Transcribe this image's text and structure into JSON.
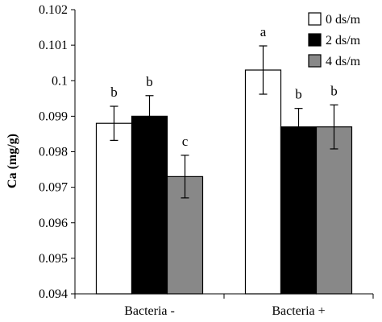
{
  "chart_data": {
    "type": "bar",
    "title": "",
    "xlabel": "",
    "ylabel": "Ca (mg/g)",
    "ylim": [
      0.094,
      0.102
    ],
    "yticks": [
      0.094,
      0.095,
      0.096,
      0.097,
      0.098,
      0.099,
      0.1,
      0.101,
      0.102
    ],
    "ytick_labels": [
      "0.094",
      "0.095",
      "0.096",
      "0.097",
      "0.098",
      "0.099",
      "0.1",
      "0.101",
      "0.102"
    ],
    "grid": false,
    "legend_position": "top-right",
    "categories": [
      "Bacteria -",
      "Bacteria +"
    ],
    "series": [
      {
        "name": "0 ds/m",
        "color": "#ffffff",
        "values": [
          0.0988,
          0.1003
        ],
        "errors": [
          0.00048,
          0.00068
        ],
        "labels": [
          "b",
          "a"
        ]
      },
      {
        "name": "2 ds/m",
        "color": "#000000",
        "values": [
          0.099,
          0.0987
        ],
        "errors": [
          0.00058,
          0.00052
        ],
        "labels": [
          "b",
          "b"
        ]
      },
      {
        "name": "4 ds/m",
        "color": "#888888",
        "values": [
          0.0973,
          0.0987
        ],
        "errors": [
          0.0006,
          0.00062
        ],
        "labels": [
          "c",
          "b"
        ]
      }
    ]
  }
}
